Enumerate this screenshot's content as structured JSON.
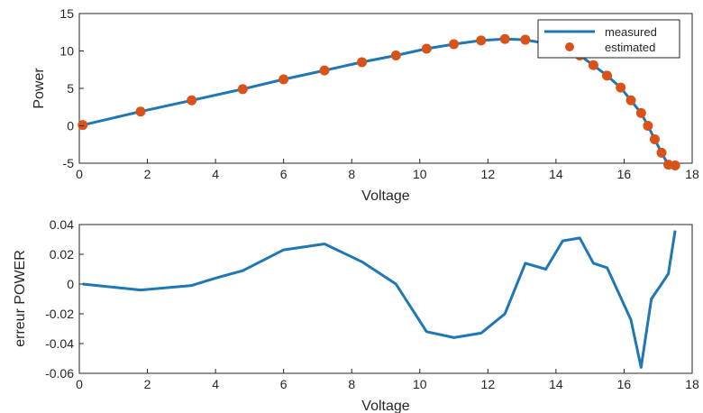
{
  "chart_data": [
    {
      "type": "line",
      "xlabel": "Voltage",
      "ylabel": "Power",
      "xlim": [
        0,
        18
      ],
      "ylim": [
        -5,
        15
      ],
      "xticks": [
        0,
        2,
        4,
        6,
        8,
        10,
        12,
        14,
        16,
        18
      ],
      "yticks": [
        -5,
        0,
        5,
        10,
        15
      ],
      "grid": false,
      "legend_position": "top-right",
      "colors": {
        "measured": "#1f77b4",
        "estimated": "#d95319"
      },
      "series": [
        {
          "name": "measured",
          "style": "line",
          "x": [
            0.1,
            1.8,
            3.3,
            4.8,
            6.0,
            7.2,
            8.3,
            9.3,
            10.2,
            11.0,
            11.8,
            12.5,
            13.1,
            13.7,
            14.2,
            14.7,
            15.1,
            15.5,
            15.9,
            16.2,
            16.5,
            16.7,
            16.9,
            17.1,
            17.3,
            17.5
          ],
          "values": [
            0.1,
            1.9,
            3.4,
            4.9,
            6.2,
            7.4,
            8.5,
            9.4,
            10.3,
            10.9,
            11.4,
            11.6,
            11.5,
            11.0,
            10.4,
            9.4,
            8.1,
            6.7,
            5.1,
            3.4,
            1.7,
            0.0,
            -1.8,
            -3.6,
            -5.2,
            -5.3
          ]
        },
        {
          "name": "estimated",
          "style": "markers",
          "x": [
            0.1,
            1.8,
            3.3,
            4.8,
            6.0,
            7.2,
            8.3,
            9.3,
            10.2,
            11.0,
            11.8,
            12.5,
            13.1,
            14.2,
            14.7,
            15.1,
            15.5,
            15.9,
            16.2,
            16.5,
            16.7,
            16.9,
            17.1,
            17.3,
            17.5
          ],
          "values": [
            0.1,
            1.9,
            3.4,
            4.9,
            6.2,
            7.4,
            8.5,
            9.4,
            10.3,
            10.9,
            11.4,
            11.6,
            11.5,
            10.4,
            9.4,
            8.1,
            6.7,
            5.1,
            3.4,
            1.7,
            0.0,
            -1.8,
            -3.6,
            -5.2,
            -5.3
          ]
        }
      ]
    },
    {
      "type": "line",
      "xlabel": "Voltage",
      "ylabel": "erreur POWER",
      "xlim": [
        0,
        18
      ],
      "ylim": [
        -0.06,
        0.04
      ],
      "xticks": [
        0,
        2,
        4,
        6,
        8,
        10,
        12,
        14,
        16,
        18
      ],
      "yticks": [
        -0.06,
        -0.04,
        -0.02,
        0,
        0.02,
        0.04
      ],
      "grid": false,
      "colors": {
        "error": "#1f77b4"
      },
      "series": [
        {
          "x": [
            0.1,
            1.8,
            3.3,
            4.0,
            4.8,
            6.0,
            7.2,
            8.3,
            9.3,
            10.2,
            11.0,
            11.8,
            12.5,
            13.1,
            13.7,
            14.2,
            14.7,
            15.1,
            15.5,
            15.9,
            16.2,
            16.5,
            16.8,
            17.1,
            17.3,
            17.5
          ],
          "values": [
            0.0,
            -0.004,
            -0.001,
            0.004,
            0.009,
            0.023,
            0.027,
            0.015,
            0.0,
            -0.032,
            -0.036,
            -0.033,
            -0.02,
            0.014,
            0.01,
            0.029,
            0.031,
            0.014,
            0.011,
            -0.009,
            -0.024,
            -0.056,
            -0.01,
            0.0,
            0.007,
            0.036
          ]
        }
      ]
    }
  ]
}
